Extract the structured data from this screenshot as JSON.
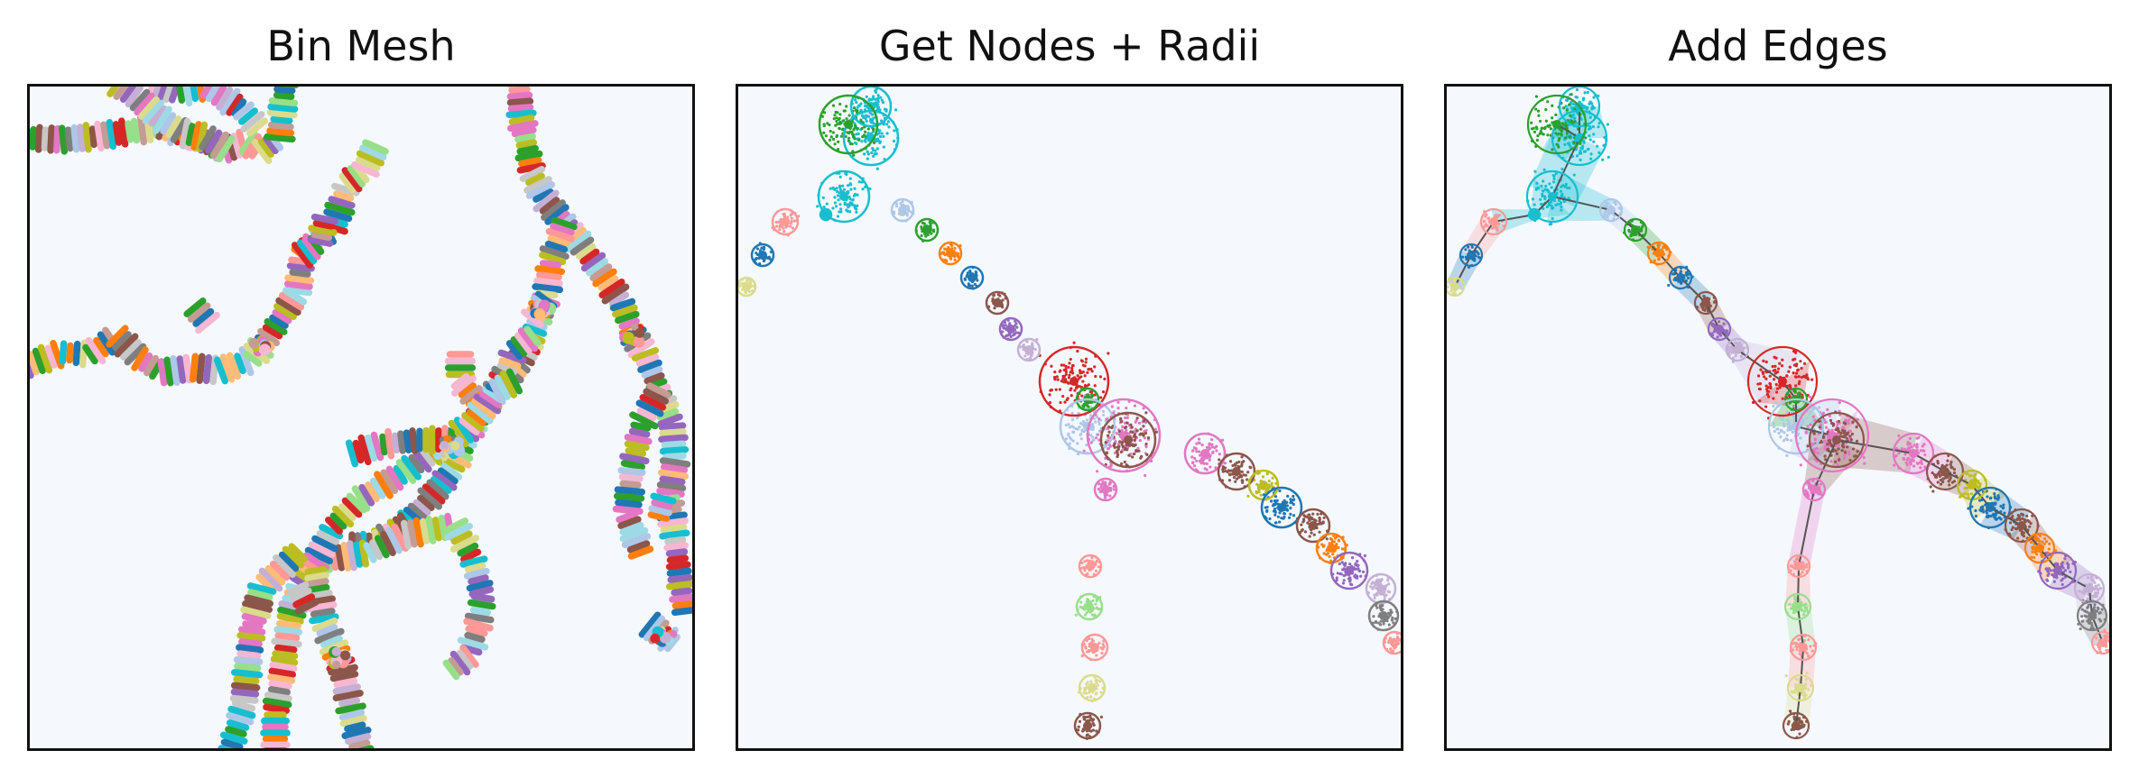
{
  "panels": [
    {
      "id": "bin-mesh",
      "title": "Bin Mesh"
    },
    {
      "id": "get-nodes-radii",
      "title": "Get Nodes + Radii"
    },
    {
      "id": "add-edges",
      "title": "Add Edges"
    }
  ],
  "colors": {
    "panel_background": "#f5f9fe",
    "frame": "#111111",
    "palette": [
      "#1f77b4",
      "#aec7e8",
      "#ff7f0e",
      "#ffbb78",
      "#2ca02c",
      "#98df8a",
      "#d62728",
      "#ff9896",
      "#9467bd",
      "#c5b0d5",
      "#8c564b",
      "#c49c94",
      "#e377c2",
      "#f7b6d2",
      "#7f7f7f",
      "#c7c7c7",
      "#bcbd22",
      "#dbdb8d",
      "#17becf",
      "#9edae5"
    ]
  }
}
